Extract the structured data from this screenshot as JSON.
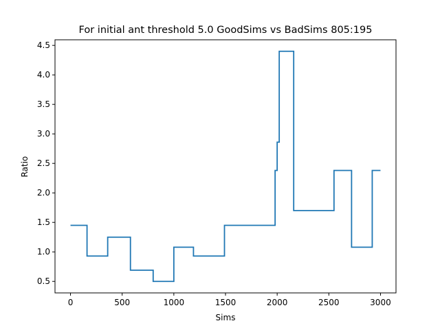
{
  "chart_data": {
    "type": "line",
    "title": "For initial ant threshold 5.0 GoodSims vs BadSims 805:195",
    "xlabel": "Sims",
    "ylabel": "Ratio",
    "xlim": [
      -150,
      3150
    ],
    "ylim": [
      0.305,
      4.595
    ],
    "xticks": [
      0,
      500,
      1000,
      1500,
      2000,
      2500,
      3000
    ],
    "xtick_labels": [
      "0",
      "500",
      "1000",
      "1500",
      "2000",
      "2500",
      "3000"
    ],
    "yticks": [
      0.5,
      1.0,
      1.5,
      2.0,
      2.5,
      3.0,
      3.5,
      4.0,
      4.5
    ],
    "ytick_labels": [
      "0.5",
      "1.0",
      "1.5",
      "2.0",
      "2.5",
      "3.0",
      "3.5",
      "4.0",
      "4.5"
    ],
    "grid": false,
    "legend": "none",
    "line_color": "#1f77b4",
    "series": [
      {
        "step": true,
        "x": [
          0,
          160,
          360,
          580,
          800,
          1000,
          1190,
          1490,
          1980,
          2000,
          2020,
          2160,
          2550,
          2720,
          2920,
          3000
        ],
        "y": [
          1.45,
          0.93,
          1.25,
          0.69,
          0.5,
          1.08,
          0.93,
          1.45,
          2.38,
          2.86,
          4.4,
          1.7,
          2.38,
          1.08,
          2.38,
          2.38
        ]
      }
    ]
  }
}
